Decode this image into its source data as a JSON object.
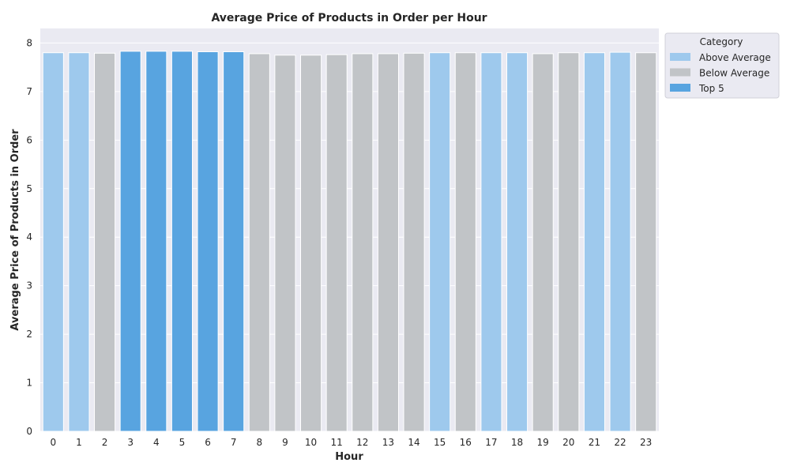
{
  "chart_data": {
    "type": "bar",
    "title": "Average Price of Products in Order per Hour",
    "xlabel": "Hour",
    "ylabel": "Average Price of Products in Order",
    "categories": [
      "0",
      "1",
      "2",
      "3",
      "4",
      "5",
      "6",
      "7",
      "8",
      "9",
      "10",
      "11",
      "12",
      "13",
      "14",
      "15",
      "16",
      "17",
      "18",
      "19",
      "20",
      "21",
      "22",
      "23"
    ],
    "values": [
      7.8,
      7.8,
      7.79,
      7.83,
      7.83,
      7.83,
      7.82,
      7.82,
      7.78,
      7.75,
      7.75,
      7.76,
      7.78,
      7.78,
      7.79,
      7.8,
      7.8,
      7.8,
      7.8,
      7.78,
      7.8,
      7.8,
      7.81,
      7.8
    ],
    "bar_category": [
      "Above Average",
      "Above Average",
      "Below Average",
      "Top 5",
      "Top 5",
      "Top 5",
      "Top 5",
      "Top 5",
      "Below Average",
      "Below Average",
      "Below Average",
      "Below Average",
      "Below Average",
      "Below Average",
      "Below Average",
      "Above Average",
      "Below Average",
      "Above Average",
      "Above Average",
      "Below Average",
      "Below Average",
      "Above Average",
      "Above Average",
      "Below Average"
    ],
    "ylim": [
      0,
      8.3
    ],
    "yticks": [
      "0",
      "1",
      "2",
      "3",
      "4",
      "5",
      "6",
      "7",
      "8"
    ],
    "grid": true,
    "legend": {
      "title": "Category",
      "placement": "upper-right-outside",
      "entries": [
        {
          "label": "Above Average",
          "color": "#9ec9ed"
        },
        {
          "label": "Below Average",
          "color": "#c1c4c7"
        },
        {
          "label": "Top 5",
          "color": "#58a4e0"
        }
      ]
    },
    "colors": {
      "Above Average": "#9ec9ed",
      "Below Average": "#c1c4c7",
      "Top 5": "#58a4e0",
      "plot_background": "#eaeaf2",
      "grid": "#ffffff"
    }
  }
}
